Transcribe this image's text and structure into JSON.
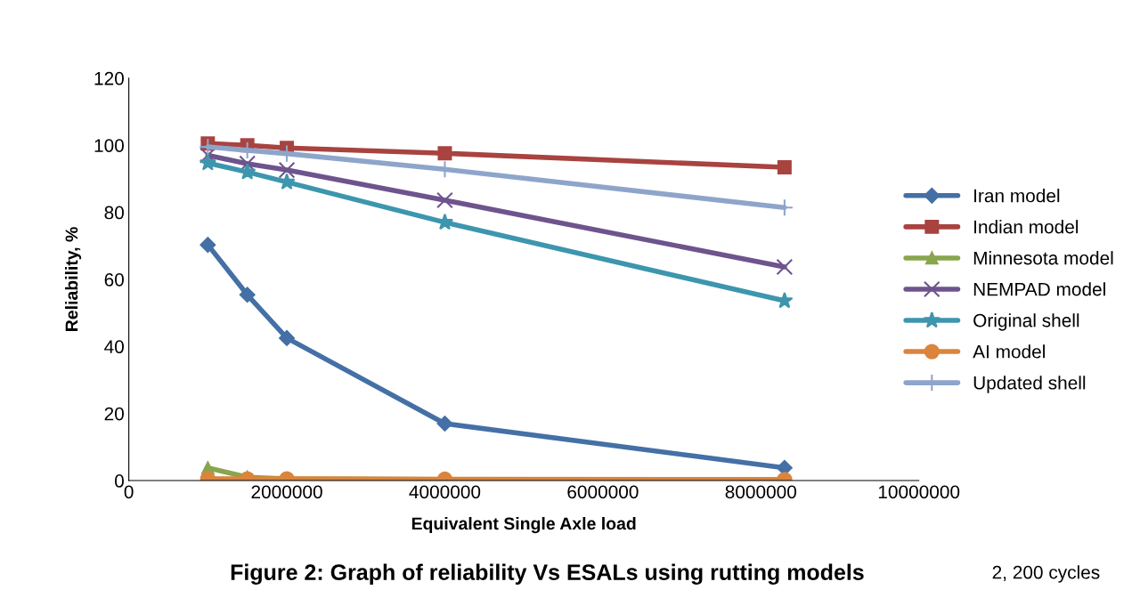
{
  "chart_data": {
    "type": "line",
    "title": "Figure 2: Graph of reliability Vs ESALs using rutting models",
    "xlabel": "Equivalent Single Axle load",
    "ylabel": "Reliability, %",
    "x": [
      1000000,
      1500000,
      2000000,
      4000000,
      8300000
    ],
    "series": [
      {
        "name": "Iran model",
        "color": "#4470a6",
        "marker": "diamond",
        "values": [
          70.3,
          55.4,
          42.5,
          17,
          3.8
        ]
      },
      {
        "name": "Indian model",
        "color": "#a84340",
        "marker": "square",
        "values": [
          100.5,
          100,
          99.2,
          97.6,
          93.4
        ]
      },
      {
        "name": "Minnesota model",
        "color": "#89a54e",
        "marker": "triangle",
        "values": [
          3.8,
          1,
          0.5,
          0.3,
          0.2
        ]
      },
      {
        "name": "NEMPAD model",
        "color": "#6e548d",
        "marker": "cross",
        "values": [
          97,
          94.5,
          92.6,
          83.6,
          63.7
        ]
      },
      {
        "name": "Original shell",
        "color": "#3d96ae",
        "marker": "star",
        "values": [
          94.7,
          92,
          89,
          77,
          53.6
        ]
      },
      {
        "name": "AI model",
        "color": "#db843d",
        "marker": "circle",
        "values": [
          0.5,
          0.5,
          0.5,
          0.4,
          0.3
        ]
      },
      {
        "name": "Updated shell",
        "color": "#8ea5cb",
        "marker": "plus",
        "values": [
          99.5,
          98.5,
          97.5,
          92.8,
          81.4
        ]
      }
    ],
    "xlim": [
      0,
      10000000
    ],
    "xticks": [
      0,
      2000000,
      4000000,
      6000000,
      8000000,
      10000000
    ],
    "ylim": [
      0,
      120
    ],
    "yticks": [
      0,
      20,
      40,
      60,
      80,
      100,
      120
    ],
    "grid": false,
    "legend": "right",
    "annotations": [
      "2, 200 cycles"
    ]
  }
}
